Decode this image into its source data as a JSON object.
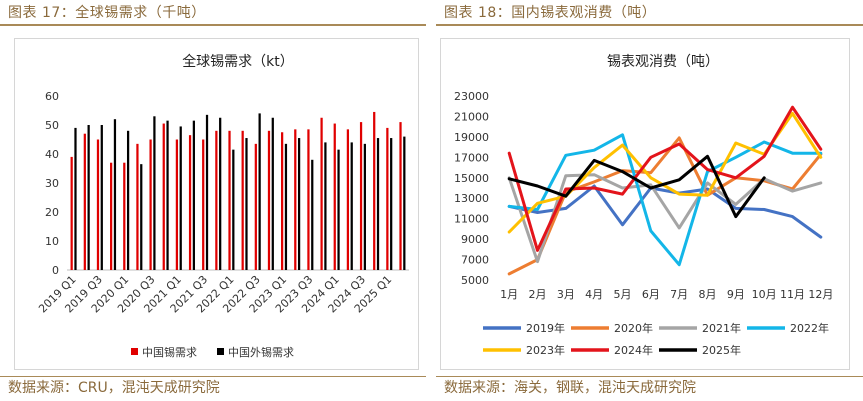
{
  "figure_left": {
    "title": "图表 17：全球锡需求（千吨）",
    "source": "数据来源：CRU，混沌天成研究院"
  },
  "figure_right": {
    "title": "图表 18：国内锡表观消费（吨）",
    "source": "数据来源：海关，钢联，混沌天成研究院"
  },
  "colors": {
    "china": "#e00000",
    "overseas": "#000000",
    "y2019": "#4472c4",
    "y2020": "#ed7d31",
    "y2021": "#a5a5a5",
    "y2022": "#13b6e8",
    "y2023": "#ffc000",
    "y2024": "#e3141b",
    "y2025": "#000000"
  },
  "chart_data": [
    {
      "type": "bar",
      "title": "全球锡需求（kt）",
      "ylim": [
        0,
        60
      ],
      "yticks": [
        0,
        10,
        20,
        30,
        40,
        50,
        60
      ],
      "grid": false,
      "legend_position": "bottom",
      "categories": [
        "2019 Q1",
        "2019 Q2",
        "2019 Q3",
        "2019 Q4",
        "2020 Q1",
        "2020 Q2",
        "2020 Q3",
        "2020 Q4",
        "2021 Q1",
        "2021 Q2",
        "2021 Q3",
        "2021 Q4",
        "2022 Q1",
        "2022 Q2",
        "2022 Q3",
        "2022 Q4",
        "2023 Q1",
        "2023 Q2",
        "2023 Q3",
        "2023 Q4",
        "2024 Q1",
        "2024 Q2",
        "2024 Q3",
        "2024 Q4",
        "2025 Q1",
        "2025 Q2"
      ],
      "tick_labels": [
        "2019 Q1",
        "2019 Q3",
        "2020 Q1",
        "2020 Q3",
        "2021 Q1",
        "2021 Q3",
        "2022 Q1",
        "2022 Q3",
        "2023 Q1",
        "2023 Q3",
        "2024 Q1",
        "2024 Q3",
        "2025 Q1"
      ],
      "tick_every": 2,
      "series": [
        {
          "name": "中国锡需求",
          "color_key": "china",
          "values": [
            39,
            47,
            45,
            37,
            37,
            43.5,
            45,
            50.5,
            45,
            46.5,
            45,
            48,
            48,
            48,
            43.5,
            48,
            47.5,
            48.5,
            48.5,
            52.5,
            50.5,
            48.5,
            51,
            54.5,
            49,
            51
          ]
        },
        {
          "name": "中国外锡需求",
          "color_key": "overseas",
          "values": [
            49,
            50,
            50,
            52,
            48,
            36.5,
            53,
            51.5,
            49.5,
            51.5,
            53.5,
            52.5,
            41.5,
            45.5,
            54,
            52.5,
            43.5,
            45.5,
            38,
            44,
            41.5,
            44,
            43.5,
            45.5,
            45.5,
            46
          ]
        }
      ]
    },
    {
      "type": "line",
      "title": "锡表观消费（吨）",
      "ylim": [
        5000,
        23000
      ],
      "yticks": [
        5000,
        7000,
        9000,
        11000,
        13000,
        15000,
        17000,
        19000,
        21000,
        23000
      ],
      "grid": false,
      "legend_position": "bottom",
      "categories": [
        "1月",
        "2月",
        "3月",
        "4月",
        "5月",
        "6月",
        "7月",
        "8月",
        "9月",
        "10月",
        "11月",
        "12月"
      ],
      "series": [
        {
          "name": "2019年",
          "color_key": "y2019",
          "values": [
            12200,
            11600,
            12000,
            14200,
            10400,
            14000,
            13500,
            13900,
            12000,
            11900,
            11200,
            9200
          ]
        },
        {
          "name": "2020年",
          "color_key": "y2020",
          "values": [
            5600,
            7000,
            13600,
            14600,
            15700,
            15500,
            18900,
            13300,
            15000,
            14700,
            13900,
            17300
          ]
        },
        {
          "name": "2021年",
          "color_key": "y2021",
          "values": [
            15000,
            6800,
            15200,
            15300,
            14000,
            14300,
            10100,
            14500,
            12400,
            14900,
            13700,
            14500
          ]
        },
        {
          "name": "2022年",
          "color_key": "y2022",
          "values": [
            12200,
            11900,
            17200,
            17700,
            19200,
            9800,
            6500,
            15600,
            17000,
            18500,
            17400,
            17400
          ]
        },
        {
          "name": "2023年",
          "color_key": "y2023",
          "values": [
            9700,
            12500,
            13200,
            16000,
            18200,
            15000,
            13400,
            13300,
            18400,
            17300,
            21300,
            17000
          ]
        },
        {
          "name": "2024年",
          "color_key": "y2024",
          "values": [
            17400,
            7900,
            13900,
            14000,
            13400,
            17000,
            18300,
            15800,
            15000,
            17100,
            21900,
            17800
          ]
        },
        {
          "name": "2025年",
          "color_key": "y2025",
          "values": [
            14900,
            14200,
            13200,
            16700,
            15600,
            14000,
            14800,
            17100,
            11200,
            15000,
            null,
            null
          ]
        }
      ]
    }
  ]
}
